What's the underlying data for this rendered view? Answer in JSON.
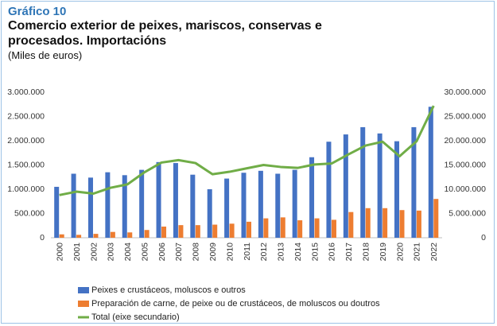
{
  "chart_data": {
    "type": "bar",
    "label": "Gráfico 10",
    "title": "Comercio exterior de peixes, mariscos, conservas e procesados. Importacións",
    "subtitle": "(Miles de euros)",
    "categories": [
      "2000",
      "2001",
      "2002",
      "2003",
      "2004",
      "2005",
      "2006",
      "2007",
      "2008",
      "2009",
      "2010",
      "2011",
      "2012",
      "2013",
      "2014",
      "2015",
      "2016",
      "2017",
      "2018",
      "2019",
      "2020",
      "2021",
      "2022"
    ],
    "series": [
      {
        "name": "Peixes e crustáceos, moluscos e outros",
        "color": "#4472c4",
        "type": "bar",
        "values": [
          1050000,
          1320000,
          1240000,
          1350000,
          1290000,
          1400000,
          1560000,
          1540000,
          1300000,
          1000000,
          1220000,
          1340000,
          1380000,
          1320000,
          1400000,
          1660000,
          1980000,
          2130000,
          2280000,
          2150000,
          1990000,
          2280000,
          2700000
        ]
      },
      {
        "name": "Preparación de carne, de peixe ou de crustáceos, de moluscos ou doutros",
        "color": "#ed7d31",
        "type": "bar",
        "values": [
          70000,
          60000,
          80000,
          120000,
          110000,
          160000,
          230000,
          260000,
          260000,
          270000,
          290000,
          330000,
          400000,
          420000,
          360000,
          400000,
          370000,
          530000,
          610000,
          610000,
          570000,
          560000,
          800000
        ]
      },
      {
        "name": "Total (eixe secundario)",
        "color": "#70ad47",
        "type": "line",
        "axis": "y2",
        "values": [
          8800000,
          9500000,
          9100000,
          10300000,
          11000000,
          13500000,
          15500000,
          16000000,
          15400000,
          13100000,
          13600000,
          14300000,
          15000000,
          14600000,
          14400000,
          15100000,
          15300000,
          17200000,
          19000000,
          19800000,
          16800000,
          19900000,
          27200000
        ]
      }
    ],
    "ylim": [
      0,
      3000000
    ],
    "yticks": [
      0,
      {
        "value": 500000,
        "label": "500.000"
      },
      {
        "value": 1000000,
        "label": "1.000.000"
      },
      {
        "value": 1500000,
        "label": "1.500.000"
      },
      {
        "value": 2000000,
        "label": "2.000.000"
      },
      {
        "value": 2500000,
        "label": "2.500.000"
      },
      {
        "value": 3000000,
        "label": "3.000.000"
      }
    ],
    "y2lim": [
      0,
      30000000
    ],
    "y2ticks": [
      0,
      {
        "value": 5000000,
        "label": "5.000.000"
      },
      {
        "value": 10000000,
        "label": "10.000.000"
      },
      {
        "value": 15000000,
        "label": "15.000.000"
      },
      {
        "value": 20000000,
        "label": "20.000.000"
      },
      {
        "value": 25000000,
        "label": "25.000.000"
      },
      {
        "value": 30000000,
        "label": "30.000.000"
      }
    ],
    "grid": false,
    "legend": "bottom"
  }
}
